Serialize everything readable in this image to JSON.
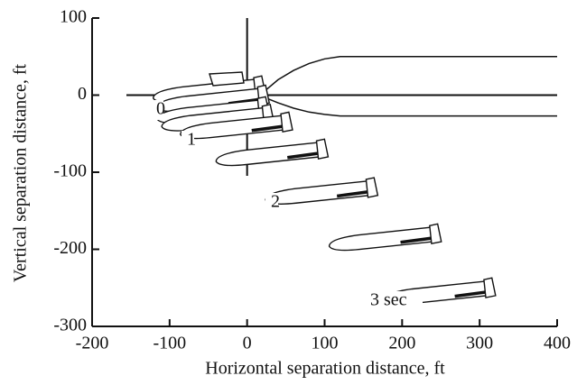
{
  "chart_data": {
    "type": "trajectory",
    "xlabel": "Horizontal separation distance, ft",
    "ylabel": "Vertical separation distance, ft",
    "xlim": [
      -200,
      400
    ],
    "xticks": [
      -200,
      -100,
      0,
      100,
      200,
      300,
      400
    ],
    "ylim": [
      -300,
      100
    ],
    "yticks": [
      -300,
      -200,
      -100,
      0,
      100
    ],
    "x": [
      19,
      24,
      24,
      30,
      54,
      100,
      164,
      246,
      316
    ],
    "values": [
      12,
      0,
      -15,
      -25,
      -35,
      -70,
      -120,
      -180,
      -250
    ],
    "lines": [
      {
        "x": [
          20,
          40,
          60,
          80,
          100,
          120,
          400
        ],
        "values": [
          3,
          20,
          32,
          41,
          47,
          50,
          50
        ]
      },
      {
        "x": [
          20,
          40,
          60,
          80,
          100,
          120,
          400
        ],
        "values": [
          -2,
          -10,
          -17,
          -22,
          -25,
          -27,
          -27
        ]
      }
    ],
    "annotations": [
      "0",
      "1",
      "2",
      "3 sec"
    ]
  }
}
